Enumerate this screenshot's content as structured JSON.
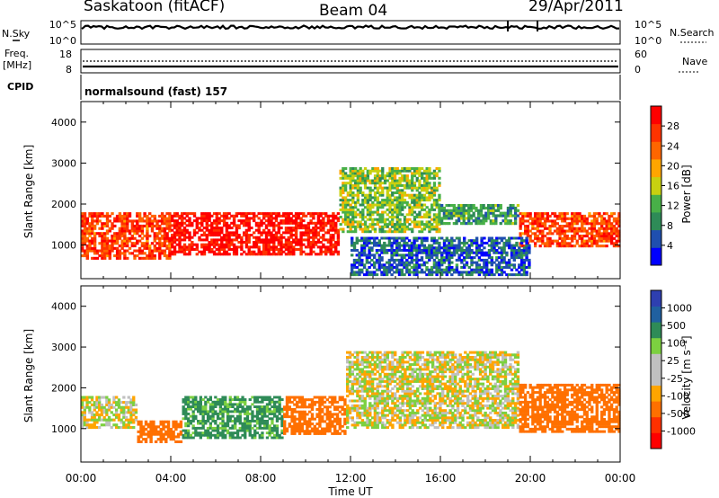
{
  "header": {
    "station": "Saskatoon (fitACF)",
    "beam": "Beam 04",
    "date": "29/Apr/2011"
  },
  "top_panels": {
    "nsky_label": "N.Sky",
    "nsky_ticks": [
      "10^5",
      "10^0"
    ],
    "nsearch_label": "N.Search",
    "nsearch_ticks": [
      "10^5",
      "10^0"
    ],
    "freq_label_1": "Freq.",
    "freq_label_2": "[MHz]",
    "freq_ticks": [
      "18",
      "8"
    ],
    "nave_label": "Nave",
    "nave_ticks": [
      "60",
      "0"
    ],
    "cpid_label": "CPID",
    "cpid_value": "normalsound (fast) 157"
  },
  "colors": {
    "power_scale": [
      "#0000ff",
      "#1f4faf",
      "#2e8b57",
      "#48b048",
      "#c8d010",
      "#ffa500",
      "#ff6600",
      "#ff3300",
      "#ff0000"
    ],
    "velocity_scale": [
      "#2e3fb0",
      "#2060a0",
      "#2e8b57",
      "#7cd040",
      "#c0c0c0",
      "#c0c0c0",
      "#ffa500",
      "#ff7000",
      "#ff3000",
      "#ff0000"
    ]
  },
  "chart_data": [
    {
      "type": "heatmap",
      "title": "Power",
      "xlabel": "Time UT",
      "ylabel": "Slant Range [km]",
      "x_ticks": [
        "00:00",
        "04:00",
        "08:00",
        "12:00",
        "16:00",
        "20:00",
        "00:00"
      ],
      "xlim_hours": [
        0,
        24
      ],
      "y_ticks": [
        1000,
        2000,
        3000,
        4000
      ],
      "ylim_km": [
        180,
        4500
      ],
      "colorbar": {
        "label": "Power [dB]",
        "tick_labels": [
          "28",
          "24",
          "20",
          "16",
          "12",
          "8",
          "4"
        ],
        "range": [
          0,
          32
        ]
      },
      "echo_regions": [
        {
          "t0": 0.0,
          "t1": 4.0,
          "r0": 650,
          "r1": 1800,
          "value": 26
        },
        {
          "t0": 4.0,
          "t1": 11.5,
          "r0": 750,
          "r1": 1800,
          "value": 30
        },
        {
          "t0": 11.5,
          "t1": 16.0,
          "r0": 1300,
          "r1": 2900,
          "value": 14
        },
        {
          "t0": 16.0,
          "t1": 19.5,
          "r0": 1500,
          "r1": 2000,
          "value": 10
        },
        {
          "t0": 19.5,
          "t1": 24.0,
          "r0": 950,
          "r1": 1800,
          "value": 26
        },
        {
          "t0": 12.0,
          "t1": 20.0,
          "r0": 250,
          "r1": 1200,
          "value": 6
        }
      ]
    },
    {
      "type": "heatmap",
      "title": "Velocity",
      "xlabel": "Time UT",
      "ylabel": "Slant Range [km]",
      "x_ticks": [
        "00:00",
        "04:00",
        "08:00",
        "12:00",
        "16:00",
        "20:00",
        "00:00"
      ],
      "xlim_hours": [
        0,
        24
      ],
      "y_ticks": [
        1000,
        2000,
        3000,
        4000
      ],
      "ylim_km": [
        180,
        4500
      ],
      "colorbar": {
        "label": "Velocity [m s⁻¹]",
        "tick_labels": [
          "1000",
          "500",
          "100",
          "25",
          "-25",
          "-100",
          "-500",
          "-1000"
        ],
        "range": [
          -1000,
          1000
        ]
      },
      "echo_regions": [
        {
          "t0": 0.0,
          "t1": 2.5,
          "r0": 1000,
          "r1": 1800,
          "value": 0
        },
        {
          "t0": 2.5,
          "t1": 4.5,
          "r0": 650,
          "r1": 1200,
          "value": -300
        },
        {
          "t0": 4.5,
          "t1": 9.0,
          "r0": 750,
          "r1": 1800,
          "value": 150
        },
        {
          "t0": 9.0,
          "t1": 11.8,
          "r0": 850,
          "r1": 1800,
          "value": -200
        },
        {
          "t0": 11.8,
          "t1": 19.5,
          "r0": 1000,
          "r1": 2900,
          "value": 0
        },
        {
          "t0": 19.5,
          "t1": 24.0,
          "r0": 900,
          "r1": 2100,
          "value": -400
        }
      ]
    }
  ]
}
